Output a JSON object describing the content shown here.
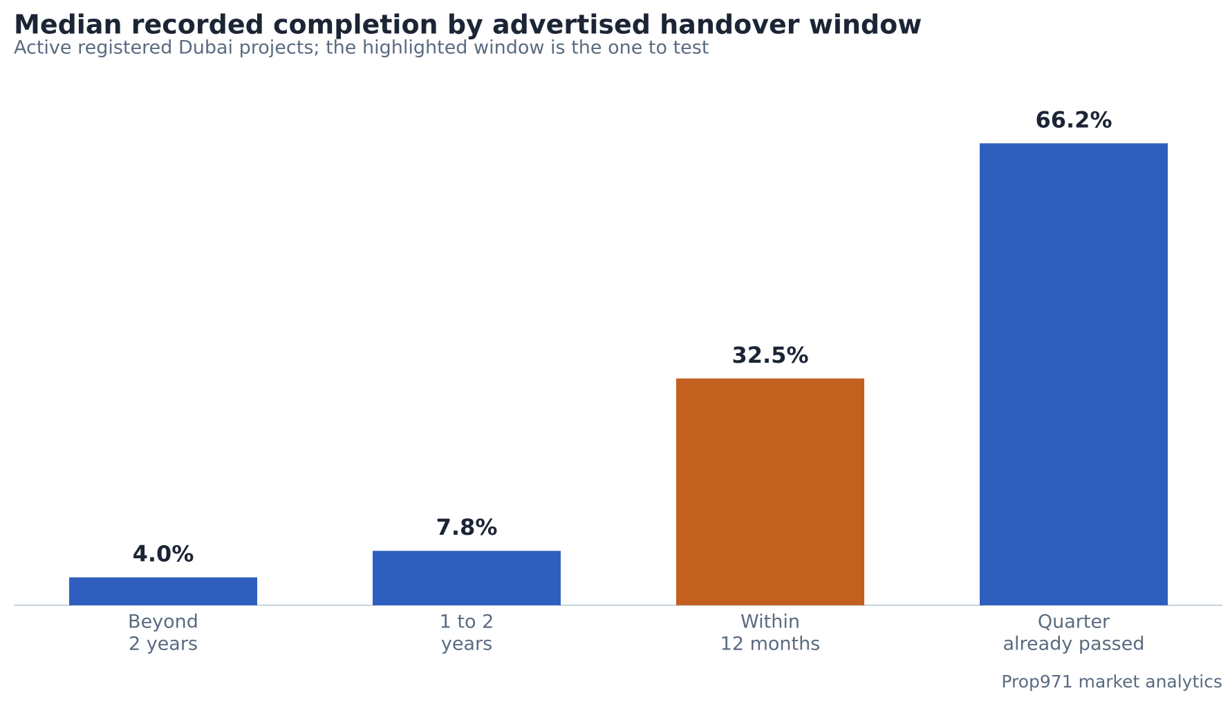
{
  "chart_data": {
    "type": "bar",
    "title": "Median recorded completion by advertised handover window",
    "subtitle": "Active registered Dubai projects; the highlighted window is the one to test",
    "categories": [
      [
        "Beyond",
        "2 years"
      ],
      [
        "1 to 2",
        "years"
      ],
      [
        "Within",
        "12 months"
      ],
      [
        "Quarter",
        "already passed"
      ]
    ],
    "values": [
      4.0,
      7.8,
      32.5,
      66.2
    ],
    "value_labels": [
      "4.0%",
      "7.8%",
      "32.5%",
      "66.2%"
    ],
    "colors": [
      "#2f5fbe",
      "#2f5fbe",
      "#c1601f",
      "#2f5fbe"
    ],
    "ylim": [
      0,
      70
    ],
    "source": "Prop971 market analytics"
  }
}
